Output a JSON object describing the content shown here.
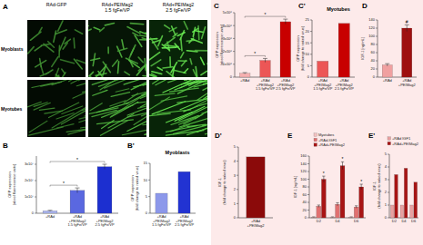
{
  "figure_a": {
    "panel": "A",
    "columns": [
      "RAd-GFP",
      "RAd+PEIMag2\n1.5 fgFe/VP",
      "RAd+PEIMag2\n2.5 fgFe/VP"
    ],
    "rows": [
      "Myoblasts",
      "Myotubes"
    ]
  },
  "chart_data": [
    {
      "panel": "B",
      "type": "bar",
      "y_label": "GFP expression\n(absol fluorescence units)",
      "categories": [
        "+RAd",
        "+RAd\n+PEIMag2\n1.5 fgFe/VP",
        "+RAd\n+PEIMag2\n2.5 fgFe/VP"
      ],
      "values": [
        1500000,
        14000000,
        28500000
      ],
      "errors": [
        300000,
        1500000,
        1500000
      ],
      "colors": [
        "#a9b4ef",
        "#5a68e0",
        "#1c2fd0"
      ],
      "ylim": [
        0,
        35000000
      ],
      "yticks": [
        0,
        {
          "value": 10000000,
          "label": "1x10⁷"
        },
        {
          "value": 20000000,
          "label": "2x10⁷"
        },
        {
          "value": 30000000,
          "label": "3x10⁷"
        }
      ],
      "annotations": [
        {
          "text": "*",
          "from": 0,
          "to": 1
        },
        {
          "text": "*",
          "from": 0,
          "to": 2
        }
      ]
    },
    {
      "panel": "B'",
      "type": "bar",
      "title": "Myoblasts",
      "y_label": "GFP expression\n(fold change to naked virus)",
      "categories": [
        "+RAd\n+PEIMag2\n1.5 fgFe/VP",
        "+RAd\n+PEIMag2\n2.5 fgFe/VP"
      ],
      "values": [
        6,
        12.5
      ],
      "colors": [
        "#8c98ea",
        "#2233d2"
      ],
      "ylim": [
        0,
        15
      ],
      "yticks": [
        0,
        5,
        10,
        15
      ]
    },
    {
      "panel": "C",
      "type": "bar",
      "y_label": "GFP expression\n(absol fluorescence units)",
      "categories": [
        "+RAd",
        "+RAd\n+PEIMag2\n1.5 fgFe/VP",
        "+RAd\n+PEIMag2\n2.5 fgFe/VP"
      ],
      "values": [
        300000,
        1300000,
        4300000
      ],
      "errors": [
        50000,
        150000,
        200000
      ],
      "colors": [
        "#f6b0b0",
        "#ec5656",
        "#c80000"
      ],
      "ylim": [
        0,
        5000000
      ],
      "yticks": [
        0,
        {
          "value": 1000000,
          "label": "1x10⁶"
        },
        {
          "value": 2000000,
          "label": "2x10⁶"
        },
        {
          "value": 3000000,
          "label": "3x10⁶"
        },
        {
          "value": 4000000,
          "label": "4x10⁶"
        },
        {
          "value": 5000000,
          "label": "5x10⁶"
        }
      ],
      "annotations": [
        {
          "text": "*",
          "from": 0,
          "to": 1
        },
        {
          "text": "*",
          "from": 0,
          "to": 2
        }
      ]
    },
    {
      "panel": "C'",
      "type": "bar",
      "title": "Myotubes",
      "y_label": "GFP expression\n(fold change to naked virus)",
      "categories": [
        "+RAd\n+PEIMag2\n1.5 fgFe/VP",
        "+RAd\n+PEIMag2\n2.5 fgFe/VP"
      ],
      "values": [
        7,
        23.5
      ],
      "colors": [
        "#ec5656",
        "#c80000"
      ],
      "ylim": [
        0,
        25
      ],
      "yticks": [
        0,
        5,
        10,
        15,
        20,
        25
      ]
    },
    {
      "panel": "D",
      "type": "bar",
      "y_label": "IGF-1 [ng/mL]",
      "categories": [
        "+RAd",
        "+RAd\n+PEIMag2"
      ],
      "values": [
        30,
        120
      ],
      "errors": [
        3,
        8
      ],
      "colors": [
        "#f0a0a0",
        "#9e1010"
      ],
      "ylim": [
        0,
        140
      ],
      "yticks": [
        0,
        20,
        40,
        60,
        80,
        100,
        120,
        140
      ],
      "annotations": [
        {
          "text": "#",
          "category": 1
        }
      ]
    },
    {
      "panel": "D'",
      "type": "bar",
      "y_label": "IGF-1\n(fold change to naked virus)",
      "categories": [
        "+RAd\n+PEIMag2"
      ],
      "values": [
        4.3
      ],
      "colors": [
        "#8b0a0a"
      ],
      "ylim": [
        0,
        5
      ],
      "yticks": [
        0,
        1,
        2,
        3,
        4,
        5
      ]
    },
    {
      "panel": "E",
      "type": "bar",
      "y_label": "IGF-1 [ng/mL]",
      "categories": [
        "D2",
        "D4",
        "D6"
      ],
      "series": [
        {
          "name": "Myotubes",
          "color": "#f3c0c0",
          "values": [
            2,
            2,
            2
          ],
          "errors": [
            0.5,
            0.5,
            0.5
          ]
        },
        {
          "name": "+RAd-IGF1",
          "color": "#e07070",
          "values": [
            30,
            35,
            28
          ],
          "errors": [
            3,
            4,
            3
          ]
        },
        {
          "name": "+RAd+PEIMag2",
          "color": "#a81414",
          "values": [
            100,
            135,
            80
          ],
          "errors": [
            8,
            10,
            7
          ]
        }
      ],
      "ylim": [
        0,
        160
      ],
      "yticks": [
        0,
        20,
        40,
        60,
        80,
        100,
        120,
        140,
        160
      ],
      "legend": "top-left",
      "annotations": [
        {
          "text": "*",
          "series": 2,
          "category": 0
        },
        {
          "text": "*",
          "series": 2,
          "category": 1
        },
        {
          "text": "*",
          "series": 2,
          "category": 2
        }
      ]
    },
    {
      "panel": "E'",
      "type": "bar",
      "y_label": "IGF-1\n(fold change to naked virus)",
      "categories": [
        "D2",
        "D4",
        "D6"
      ],
      "series": [
        {
          "name": "+RAd IGF1",
          "color": "#e8a0a0",
          "values": [
            1,
            1,
            1
          ]
        },
        {
          "name": "+RAd+PEIMag2",
          "color": "#a81414",
          "values": [
            3.4,
            3.9,
            2.8
          ]
        }
      ],
      "ylim": [
        0,
        5
      ],
      "yticks": [
        0,
        1,
        2,
        3,
        4,
        5
      ],
      "legend": "top-left"
    }
  ]
}
